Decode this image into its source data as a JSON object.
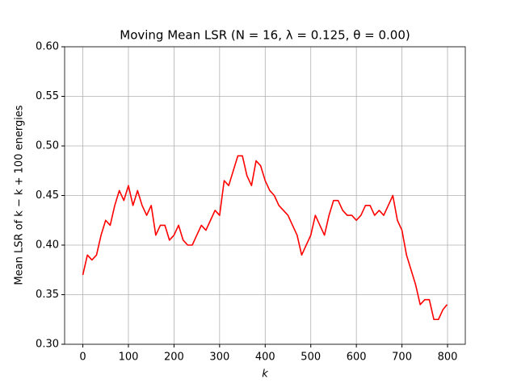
{
  "chart_data": {
    "type": "line",
    "title": "Moving Mean LSR (N = 16, λ = 0.125, θ = 0.00)",
    "xlabel": "k",
    "ylabel": "Mean LSR of k − k + 100 energies",
    "x": [
      0,
      10,
      20,
      30,
      40,
      50,
      60,
      70,
      80,
      90,
      100,
      110,
      120,
      130,
      140,
      150,
      160,
      170,
      180,
      190,
      200,
      210,
      220,
      230,
      240,
      250,
      260,
      270,
      280,
      290,
      300,
      310,
      320,
      330,
      340,
      350,
      360,
      370,
      380,
      390,
      400,
      410,
      420,
      430,
      440,
      450,
      460,
      470,
      480,
      490,
      500,
      510,
      520,
      530,
      540,
      550,
      560,
      570,
      580,
      590,
      600,
      610,
      620,
      630,
      640,
      650,
      660,
      670,
      680,
      690,
      700,
      710,
      720,
      730,
      740,
      750,
      760,
      770,
      780,
      790,
      799
    ],
    "series": [
      {
        "name": "moving mean",
        "color": "#ff0000",
        "values": [
          0.37,
          0.39,
          0.385,
          0.39,
          0.41,
          0.425,
          0.42,
          0.44,
          0.455,
          0.445,
          0.46,
          0.44,
          0.455,
          0.44,
          0.43,
          0.44,
          0.41,
          0.42,
          0.42,
          0.405,
          0.41,
          0.42,
          0.405,
          0.4,
          0.4,
          0.41,
          0.42,
          0.415,
          0.425,
          0.435,
          0.43,
          0.465,
          0.46,
          0.475,
          0.49,
          0.49,
          0.47,
          0.46,
          0.485,
          0.48,
          0.465,
          0.455,
          0.45,
          0.44,
          0.435,
          0.43,
          0.42,
          0.41,
          0.39,
          0.4,
          0.41,
          0.43,
          0.42,
          0.41,
          0.43,
          0.445,
          0.445,
          0.435,
          0.43,
          0.43,
          0.425,
          0.43,
          0.44,
          0.44,
          0.43,
          0.435,
          0.43,
          0.44,
          0.45,
          0.425,
          0.415,
          0.39,
          0.375,
          0.36,
          0.34,
          0.345,
          0.345,
          0.325,
          0.325,
          0.335,
          0.34
        ]
      }
    ],
    "xlim": [
      -39.95,
      838.95
    ],
    "xticks": [
      0,
      100,
      200,
      300,
      400,
      500,
      600,
      700,
      800
    ],
    "ylim": [
      0.3,
      0.6
    ],
    "yticks": [
      {
        "value": 0.3,
        "label": "0.30"
      },
      0.35,
      {
        "value": 0.4,
        "label": "0.40"
      },
      0.45,
      {
        "value": 0.5,
        "label": "0.50"
      },
      0.55,
      {
        "value": 0.6,
        "label": "0.60"
      }
    ],
    "grid": true
  }
}
